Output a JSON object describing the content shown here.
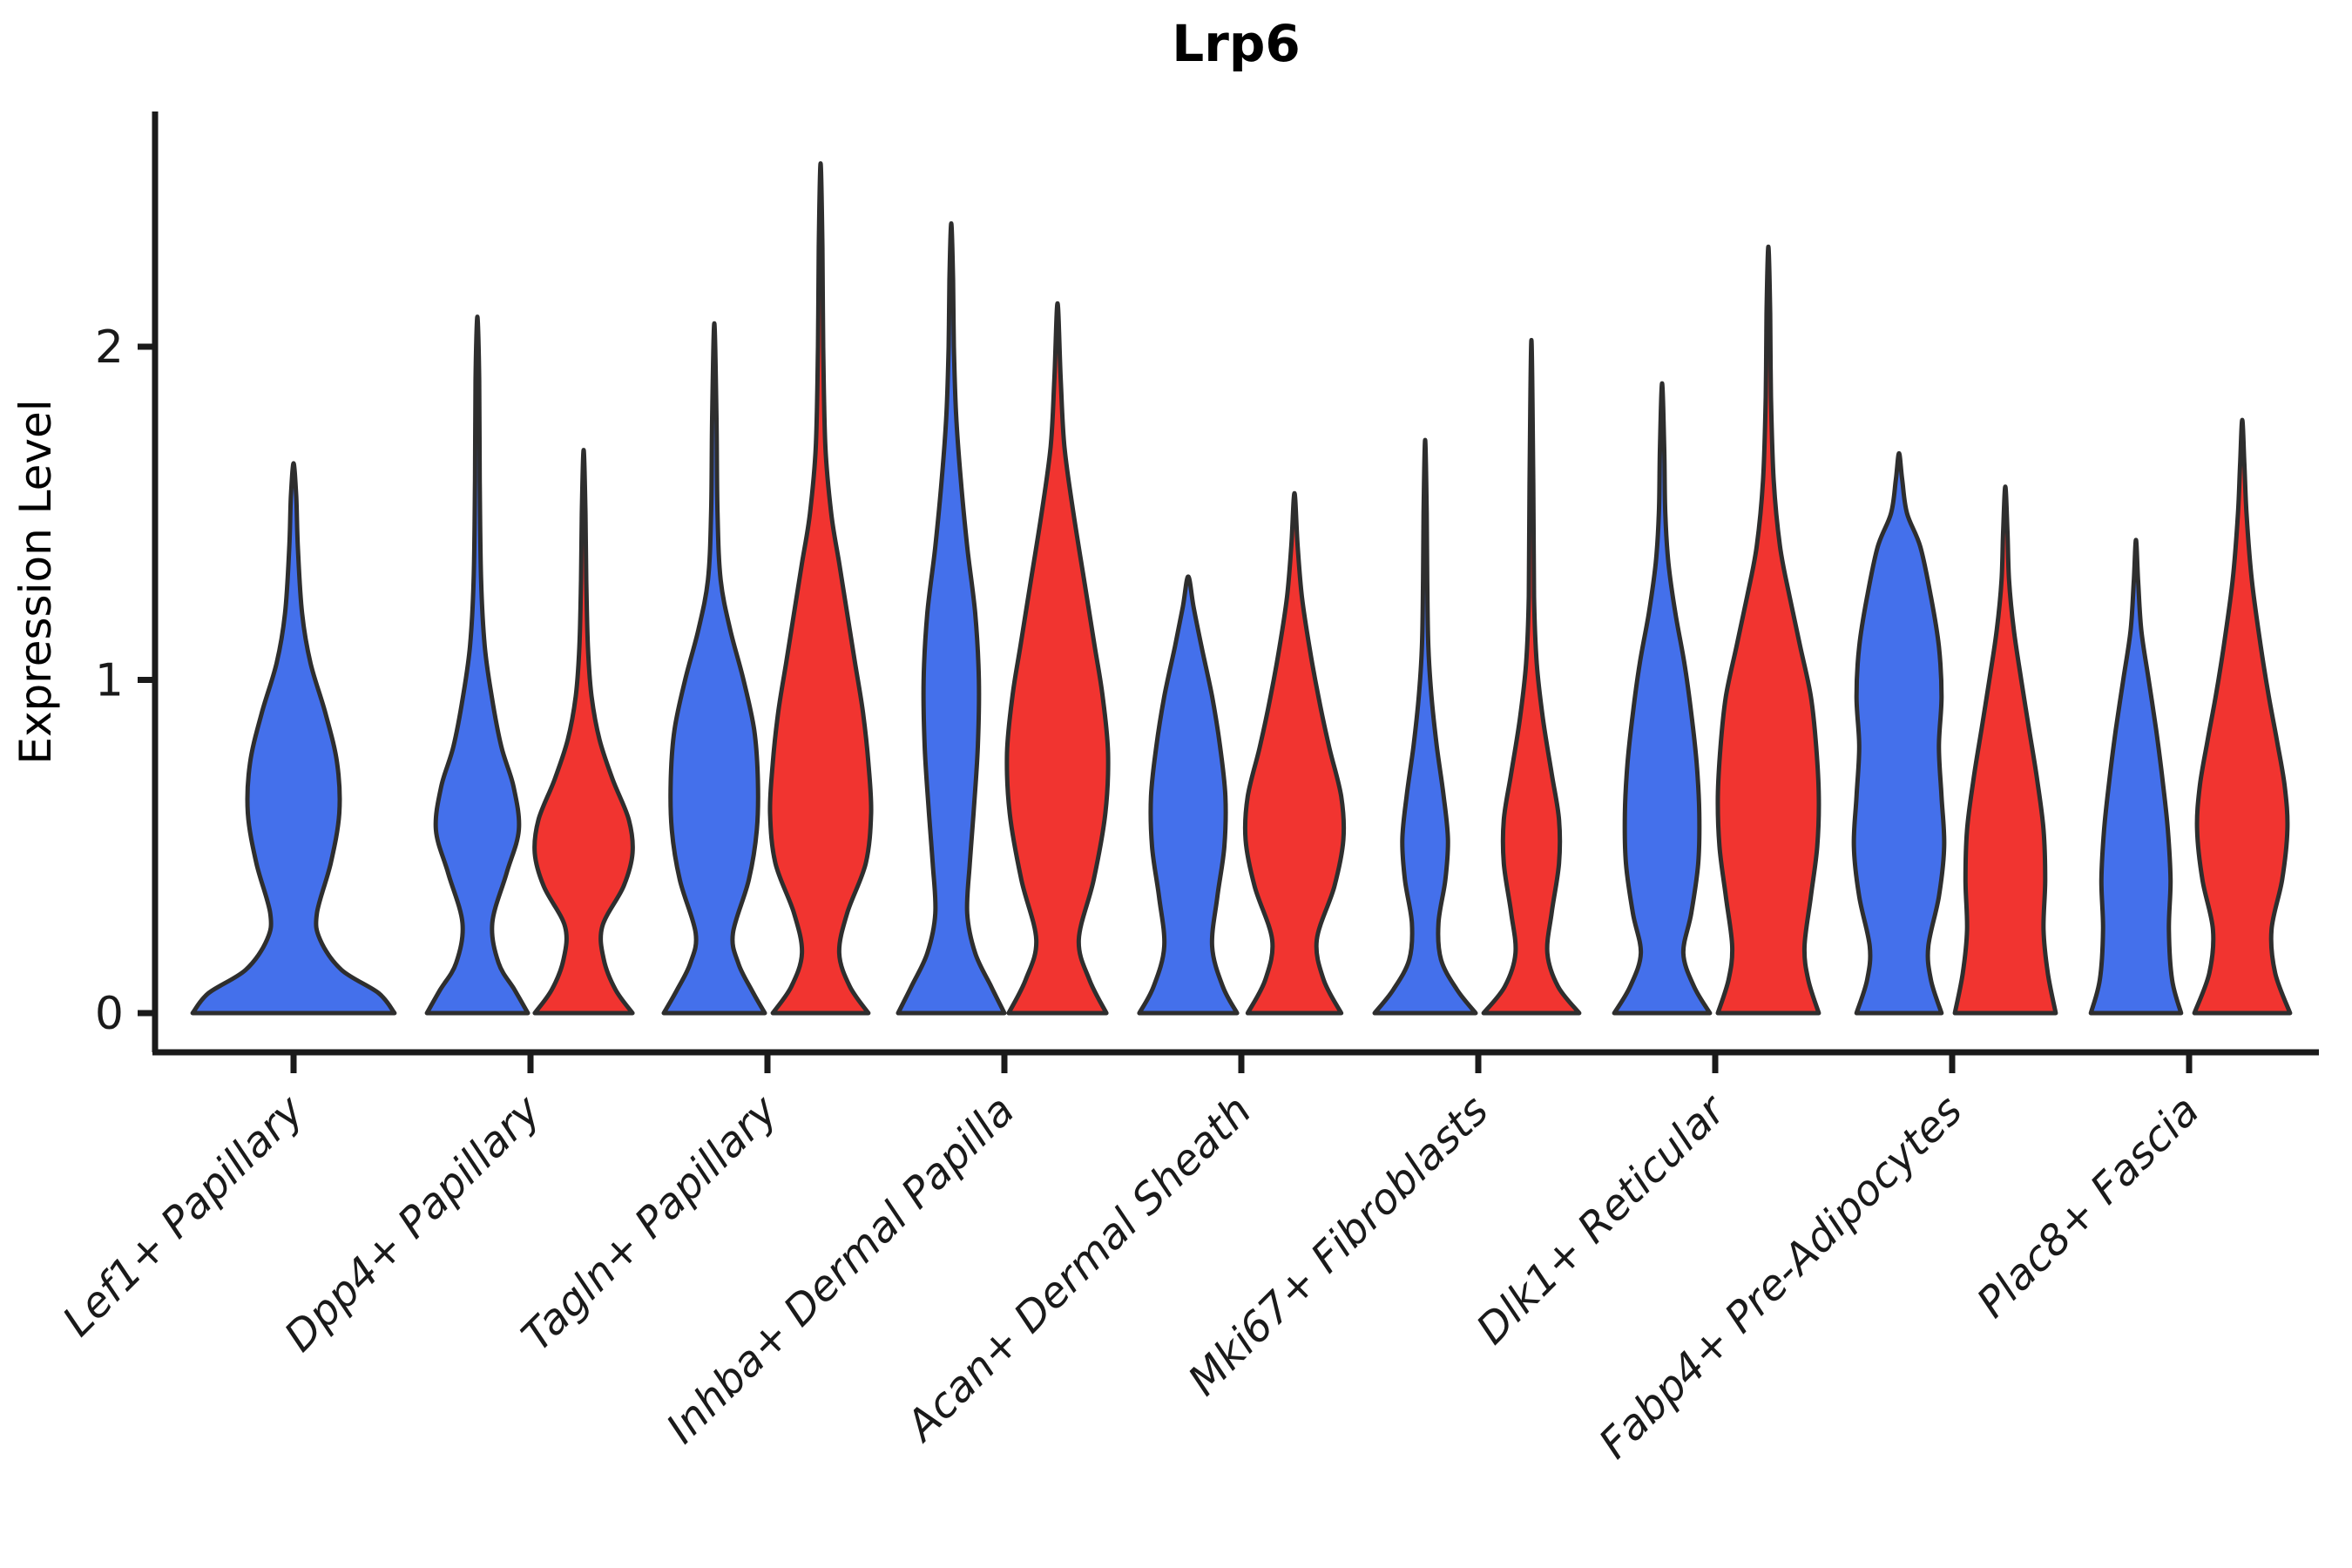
{
  "title": "Lrp6",
  "y_axis": {
    "label": "Expression Level"
  },
  "colors": {
    "blue": "#4470EB",
    "red": "#F13430",
    "stroke": "#2E2E2E",
    "axis": "#1A1A1A"
  },
  "chart_data": {
    "type": "violin",
    "title": "Lrp6",
    "ylabel": "Expression Level",
    "xlabel": "",
    "y_ticks": [
      0,
      1,
      2
    ],
    "ylim": [
      0,
      2.7
    ],
    "legend": "none",
    "grid": false,
    "categories": [
      "Lef1+ Papillary",
      "Dpp4+ Papillary",
      "Tagln+ Papillary",
      "Inhba+ Dermal Papilla",
      "Acan+ Dermal Sheath",
      "Mki67+ Fibroblasts",
      "Dlk1+ Reticular",
      "Fabp4+ Pre-Adipocytes",
      "Plac8+ Fascia"
    ],
    "groups": [
      "blue",
      "red"
    ],
    "note": "profile points are [expression_value, half_width_fraction]; Lef1+ Papillary has only the blue group (full-width violin)",
    "violins": [
      {
        "category": "Lef1+ Papillary",
        "group": "blue",
        "solo": true,
        "max_value": 1.65,
        "profile": [
          [
            0,
            0.95
          ],
          [
            0.06,
            0.8
          ],
          [
            0.13,
            0.45
          ],
          [
            0.22,
            0.25
          ],
          [
            0.3,
            0.22
          ],
          [
            0.45,
            0.35
          ],
          [
            0.6,
            0.43
          ],
          [
            0.75,
            0.41
          ],
          [
            0.9,
            0.3
          ],
          [
            1.05,
            0.16
          ],
          [
            1.2,
            0.08
          ],
          [
            1.4,
            0.04
          ],
          [
            1.55,
            0.025
          ],
          [
            1.65,
            0
          ]
        ]
      },
      {
        "category": "Dpp4+ Papillary",
        "group": "blue",
        "solo": false,
        "max_value": 2.09,
        "profile": [
          [
            0,
            0.95
          ],
          [
            0.07,
            0.7
          ],
          [
            0.15,
            0.4
          ],
          [
            0.27,
            0.28
          ],
          [
            0.42,
            0.55
          ],
          [
            0.55,
            0.78
          ],
          [
            0.68,
            0.68
          ],
          [
            0.8,
            0.45
          ],
          [
            0.95,
            0.27
          ],
          [
            1.1,
            0.14
          ],
          [
            1.3,
            0.07
          ],
          [
            1.6,
            0.045
          ],
          [
            1.9,
            0.035
          ],
          [
            2.09,
            0
          ]
        ]
      },
      {
        "category": "Dpp4+ Papillary",
        "group": "red",
        "solo": false,
        "max_value": 1.69,
        "profile": [
          [
            0,
            0.92
          ],
          [
            0.07,
            0.6
          ],
          [
            0.16,
            0.38
          ],
          [
            0.26,
            0.35
          ],
          [
            0.38,
            0.75
          ],
          [
            0.48,
            0.92
          ],
          [
            0.58,
            0.85
          ],
          [
            0.7,
            0.55
          ],
          [
            0.82,
            0.3
          ],
          [
            0.95,
            0.15
          ],
          [
            1.1,
            0.08
          ],
          [
            1.3,
            0.05
          ],
          [
            1.5,
            0.035
          ],
          [
            1.69,
            0
          ]
        ]
      },
      {
        "category": "Tagln+ Papillary",
        "group": "blue",
        "solo": false,
        "max_value": 2.07,
        "profile": [
          [
            0,
            0.95
          ],
          [
            0.07,
            0.7
          ],
          [
            0.15,
            0.45
          ],
          [
            0.24,
            0.35
          ],
          [
            0.4,
            0.65
          ],
          [
            0.55,
            0.8
          ],
          [
            0.7,
            0.82
          ],
          [
            0.85,
            0.75
          ],
          [
            1.0,
            0.55
          ],
          [
            1.15,
            0.3
          ],
          [
            1.3,
            0.12
          ],
          [
            1.5,
            0.06
          ],
          [
            1.8,
            0.04
          ],
          [
            2.07,
            0
          ]
        ]
      },
      {
        "category": "Tagln+ Papillary",
        "group": "red",
        "solo": false,
        "max_value": 2.55,
        "profile": [
          [
            0,
            0.9
          ],
          [
            0.08,
            0.55
          ],
          [
            0.18,
            0.35
          ],
          [
            0.3,
            0.5
          ],
          [
            0.45,
            0.85
          ],
          [
            0.6,
            0.95
          ],
          [
            0.75,
            0.9
          ],
          [
            0.9,
            0.8
          ],
          [
            1.05,
            0.65
          ],
          [
            1.2,
            0.5
          ],
          [
            1.35,
            0.35
          ],
          [
            1.5,
            0.2
          ],
          [
            1.7,
            0.09
          ],
          [
            2.0,
            0.05
          ],
          [
            2.3,
            0.035
          ],
          [
            2.55,
            0
          ]
        ]
      },
      {
        "category": "Inhba+ Dermal Papilla",
        "group": "blue",
        "solo": false,
        "max_value": 2.37,
        "profile": [
          [
            0,
            1.0
          ],
          [
            0.08,
            0.75
          ],
          [
            0.18,
            0.45
          ],
          [
            0.3,
            0.3
          ],
          [
            0.45,
            0.35
          ],
          [
            0.6,
            0.42
          ],
          [
            0.8,
            0.5
          ],
          [
            1.0,
            0.52
          ],
          [
            1.2,
            0.45
          ],
          [
            1.4,
            0.3
          ],
          [
            1.6,
            0.18
          ],
          [
            1.8,
            0.09
          ],
          [
            2.0,
            0.05
          ],
          [
            2.2,
            0.035
          ],
          [
            2.37,
            0
          ]
        ]
      },
      {
        "category": "Inhba+ Dermal Papilla",
        "group": "red",
        "solo": false,
        "max_value": 2.13,
        "profile": [
          [
            0,
            0.92
          ],
          [
            0.1,
            0.6
          ],
          [
            0.22,
            0.4
          ],
          [
            0.4,
            0.68
          ],
          [
            0.6,
            0.9
          ],
          [
            0.78,
            0.95
          ],
          [
            0.95,
            0.85
          ],
          [
            1.1,
            0.7
          ],
          [
            1.3,
            0.5
          ],
          [
            1.5,
            0.3
          ],
          [
            1.7,
            0.13
          ],
          [
            1.9,
            0.06
          ],
          [
            2.13,
            0
          ]
        ]
      },
      {
        "category": "Acan+ Dermal Sheath",
        "group": "blue",
        "solo": false,
        "max_value": 1.31,
        "profile": [
          [
            0,
            0.92
          ],
          [
            0.08,
            0.65
          ],
          [
            0.2,
            0.45
          ],
          [
            0.35,
            0.55
          ],
          [
            0.5,
            0.68
          ],
          [
            0.65,
            0.7
          ],
          [
            0.8,
            0.6
          ],
          [
            0.95,
            0.45
          ],
          [
            1.1,
            0.25
          ],
          [
            1.22,
            0.1
          ],
          [
            1.31,
            0
          ]
        ]
      },
      {
        "category": "Acan+ Dermal Sheath",
        "group": "red",
        "solo": false,
        "max_value": 1.56,
        "profile": [
          [
            0,
            0.88
          ],
          [
            0.1,
            0.55
          ],
          [
            0.22,
            0.42
          ],
          [
            0.38,
            0.75
          ],
          [
            0.52,
            0.92
          ],
          [
            0.65,
            0.88
          ],
          [
            0.8,
            0.65
          ],
          [
            0.95,
            0.45
          ],
          [
            1.1,
            0.28
          ],
          [
            1.25,
            0.14
          ],
          [
            1.4,
            0.06
          ],
          [
            1.56,
            0
          ]
        ]
      },
      {
        "category": "Mki67+ Fibroblasts",
        "group": "blue",
        "solo": false,
        "max_value": 1.72,
        "profile": [
          [
            0,
            0.95
          ],
          [
            0.07,
            0.6
          ],
          [
            0.16,
            0.3
          ],
          [
            0.27,
            0.25
          ],
          [
            0.4,
            0.38
          ],
          [
            0.52,
            0.43
          ],
          [
            0.65,
            0.35
          ],
          [
            0.8,
            0.22
          ],
          [
            0.95,
            0.12
          ],
          [
            1.1,
            0.06
          ],
          [
            1.3,
            0.04
          ],
          [
            1.5,
            0.03
          ],
          [
            1.72,
            0
          ]
        ]
      },
      {
        "category": "Mki67+ Fibroblasts",
        "group": "red",
        "solo": false,
        "max_value": 2.02,
        "profile": [
          [
            0,
            0.9
          ],
          [
            0.08,
            0.5
          ],
          [
            0.18,
            0.3
          ],
          [
            0.3,
            0.38
          ],
          [
            0.45,
            0.52
          ],
          [
            0.58,
            0.52
          ],
          [
            0.72,
            0.38
          ],
          [
            0.88,
            0.22
          ],
          [
            1.05,
            0.1
          ],
          [
            1.25,
            0.05
          ],
          [
            1.6,
            0.035
          ],
          [
            2.02,
            0
          ]
        ]
      },
      {
        "category": "Dlk1+ Reticular",
        "group": "blue",
        "solo": false,
        "max_value": 1.89,
        "profile": [
          [
            0,
            0.9
          ],
          [
            0.08,
            0.6
          ],
          [
            0.18,
            0.4
          ],
          [
            0.3,
            0.55
          ],
          [
            0.45,
            0.68
          ],
          [
            0.6,
            0.7
          ],
          [
            0.75,
            0.65
          ],
          [
            0.9,
            0.55
          ],
          [
            1.05,
            0.42
          ],
          [
            1.2,
            0.25
          ],
          [
            1.35,
            0.12
          ],
          [
            1.5,
            0.06
          ],
          [
            1.7,
            0.04
          ],
          [
            1.89,
            0
          ]
        ]
      },
      {
        "category": "Dlk1+ Reticular",
        "group": "red",
        "solo": false,
        "max_value": 2.3,
        "profile": [
          [
            0,
            0.95
          ],
          [
            0.1,
            0.75
          ],
          [
            0.2,
            0.68
          ],
          [
            0.35,
            0.8
          ],
          [
            0.5,
            0.92
          ],
          [
            0.65,
            0.95
          ],
          [
            0.8,
            0.9
          ],
          [
            0.95,
            0.8
          ],
          [
            1.1,
            0.6
          ],
          [
            1.25,
            0.4
          ],
          [
            1.4,
            0.22
          ],
          [
            1.6,
            0.1
          ],
          [
            1.85,
            0.05
          ],
          [
            2.1,
            0.035
          ],
          [
            2.3,
            0
          ]
        ]
      },
      {
        "category": "Fabp4+ Pre-Adipocytes",
        "group": "blue",
        "solo": false,
        "max_value": 1.68,
        "profile": [
          [
            0,
            0.8
          ],
          [
            0.1,
            0.6
          ],
          [
            0.2,
            0.55
          ],
          [
            0.35,
            0.75
          ],
          [
            0.5,
            0.85
          ],
          [
            0.65,
            0.8
          ],
          [
            0.8,
            0.75
          ],
          [
            0.95,
            0.8
          ],
          [
            1.1,
            0.75
          ],
          [
            1.25,
            0.6
          ],
          [
            1.4,
            0.4
          ],
          [
            1.5,
            0.15
          ],
          [
            1.6,
            0.06
          ],
          [
            1.68,
            0
          ]
        ]
      },
      {
        "category": "Fabp4+ Pre-Adipocytes",
        "group": "red",
        "solo": false,
        "max_value": 1.58,
        "profile": [
          [
            0,
            0.95
          ],
          [
            0.12,
            0.8
          ],
          [
            0.25,
            0.72
          ],
          [
            0.4,
            0.75
          ],
          [
            0.55,
            0.72
          ],
          [
            0.7,
            0.6
          ],
          [
            0.85,
            0.45
          ],
          [
            1.0,
            0.3
          ],
          [
            1.15,
            0.16
          ],
          [
            1.3,
            0.07
          ],
          [
            1.45,
            0.04
          ],
          [
            1.58,
            0
          ]
        ]
      },
      {
        "category": "Plac8+ Fascia",
        "group": "blue",
        "solo": false,
        "max_value": 1.42,
        "profile": [
          [
            0,
            0.85
          ],
          [
            0.1,
            0.68
          ],
          [
            0.25,
            0.62
          ],
          [
            0.4,
            0.65
          ],
          [
            0.55,
            0.6
          ],
          [
            0.7,
            0.5
          ],
          [
            0.85,
            0.38
          ],
          [
            1.0,
            0.24
          ],
          [
            1.15,
            0.1
          ],
          [
            1.3,
            0.04
          ],
          [
            1.42,
            0
          ]
        ]
      },
      {
        "category": "Plac8+ Fascia",
        "group": "red",
        "solo": false,
        "max_value": 1.78,
        "profile": [
          [
            0,
            0.9
          ],
          [
            0.12,
            0.62
          ],
          [
            0.25,
            0.55
          ],
          [
            0.4,
            0.75
          ],
          [
            0.55,
            0.85
          ],
          [
            0.68,
            0.8
          ],
          [
            0.82,
            0.65
          ],
          [
            0.95,
            0.5
          ],
          [
            1.1,
            0.35
          ],
          [
            1.3,
            0.18
          ],
          [
            1.5,
            0.08
          ],
          [
            1.65,
            0.04
          ],
          [
            1.78,
            0
          ]
        ]
      }
    ]
  }
}
